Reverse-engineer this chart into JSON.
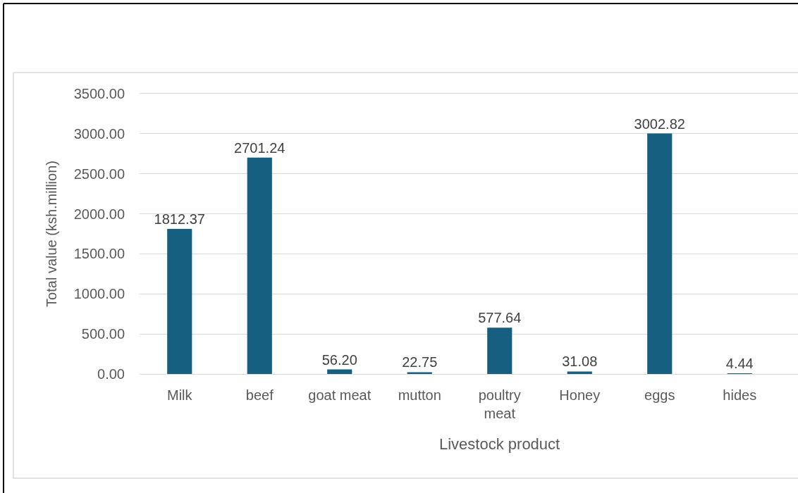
{
  "chart_data": {
    "type": "bar",
    "xlabel": "Livestock product",
    "ylabel": "Total value (ksh.million)",
    "categories": [
      "Milk",
      "beef",
      "goat meat",
      "mutton",
      "poultry meat",
      "Honey",
      "eggs",
      "hides"
    ],
    "values": [
      1812.37,
      2701.24,
      56.2,
      22.75,
      577.64,
      31.08,
      3002.82,
      4.44
    ],
    "value_labels": [
      "1812.37",
      "2701.24",
      "56.20",
      "22.75",
      "577.64",
      "31.08",
      "3002.82",
      "4.44"
    ],
    "color": "#175f80",
    "ylim": [
      0,
      3500
    ],
    "yticks": [
      {
        "value": 0,
        "label": "0.00"
      },
      {
        "value": 500,
        "label": "500.00"
      },
      {
        "value": 1000,
        "label": "1000.00"
      },
      {
        "value": 1500,
        "label": "1500.00"
      },
      {
        "value": 2000,
        "label": "2000.00"
      },
      {
        "value": 2500,
        "label": "2500.00"
      },
      {
        "value": 3000,
        "label": "3000.00"
      },
      {
        "value": 3500,
        "label": "3500.00"
      }
    ],
    "grid": "y"
  }
}
